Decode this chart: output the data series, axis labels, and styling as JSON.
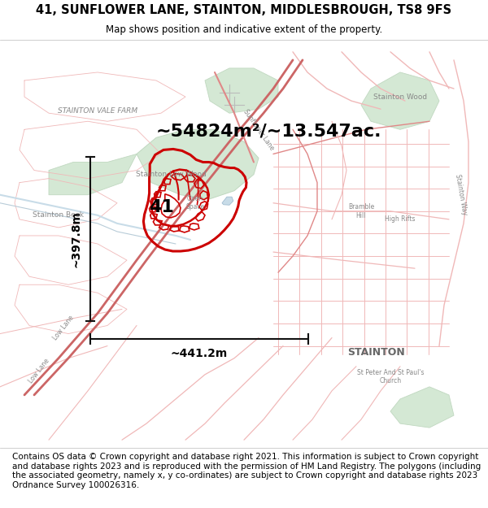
{
  "title_line1": "41, SUNFLOWER LANE, STAINTON, MIDDLESBROUGH, TS8 9FS",
  "title_line2": "Map shows position and indicative extent of the property.",
  "title_fontsize": 10.5,
  "subtitle_fontsize": 8.5,
  "footer_text": "Contains OS data © Crown copyright and database right 2021. This information is subject to Crown copyright and database rights 2023 and is reproduced with the permission of HM Land Registry. The polygons (including the associated geometry, namely x, y co-ordinates) are subject to Crown copyright and database rights 2023 Ordnance Survey 100026316.",
  "footer_fontsize": 7.5,
  "area_label": "~54824m²/~13.547ac.",
  "area_label_fontsize": 16,
  "property_number": "41",
  "property_number_fontsize": 16,
  "width_label": "~441.2m",
  "height_label": "~397.8m",
  "scale_label_fontsize": 10,
  "property_color": "#cc0000",
  "road_color_light": "#f0b8b8",
  "road_color_med": "#e08888",
  "road_color_dark": "#cc6666",
  "green_color": "#d4e8d4",
  "green_edge": "#c0d8c0",
  "water_color": "#c8dce8",
  "map_bg": "#f8f5f2",
  "scalebar_color": "#111111",
  "figsize": [
    6.0,
    6.25
  ],
  "dpi": 100,
  "map_label_color": "#888888",
  "stainton_color": "#666666"
}
